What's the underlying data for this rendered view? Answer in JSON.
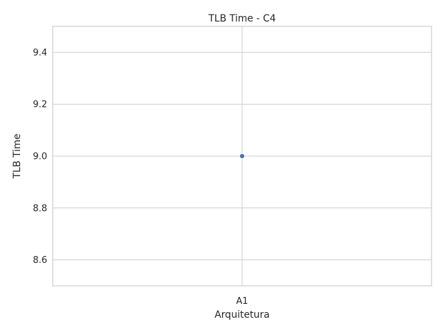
{
  "chart_data": {
    "type": "scatter",
    "title": "TLB Time - C4",
    "xlabel": "Arquitetura",
    "ylabel": "TLB Time",
    "categories": [
      "A1"
    ],
    "series": [
      {
        "values": [
          9.0
        ],
        "color": "#4c72b0"
      }
    ],
    "ylim": [
      8.5,
      9.5
    ],
    "yticks": [
      8.6,
      8.8,
      9.0,
      9.2,
      9.4
    ],
    "ytick_labels": [
      "8.6",
      "8.8",
      "9.0",
      "9.2",
      "9.4"
    ],
    "grid": true,
    "legend": "none"
  }
}
